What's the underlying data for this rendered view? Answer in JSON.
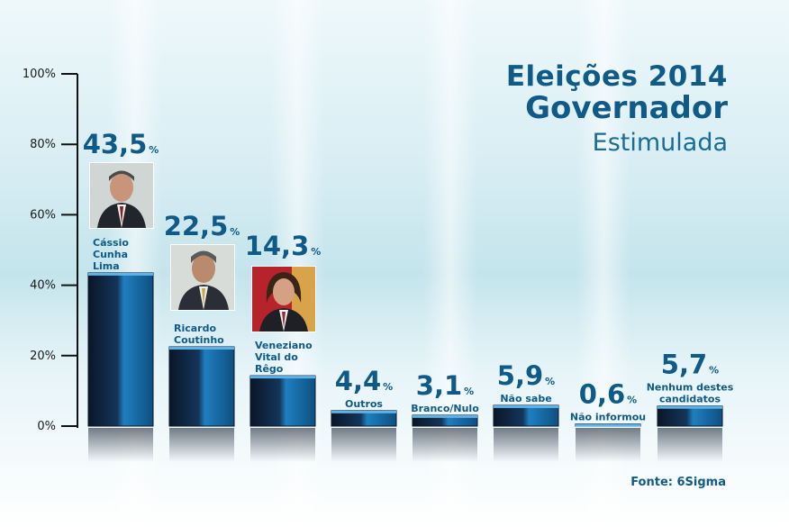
{
  "title": {
    "line1": "Eleições 2014",
    "line2": "Governador",
    "line3": "Estimulada"
  },
  "source": "Fonte: 6Sigma",
  "colors": {
    "accent": "#0f5a86",
    "bar_dark": "#0a1a30",
    "bar_light": "#1f7fc0"
  },
  "chart_data": {
    "type": "bar",
    "title": "Eleições 2014 Governador Estimulada",
    "xlabel": "",
    "ylabel": "",
    "ylim": [
      0,
      100
    ],
    "yticks": [
      "0%",
      "20%",
      "40%",
      "60%",
      "80%",
      "100%"
    ],
    "categories": [
      "Cássio Cunha Lima",
      "Ricardo Coutinho",
      "Veneziano Vital do Rêgo",
      "Outros",
      "Branco/Nulo",
      "Não sabe",
      "Não informou",
      "Nenhum destes candidatos"
    ],
    "label_lines": [
      [
        "Cássio",
        "Cunha",
        "Lima"
      ],
      [
        "Ricardo",
        "Coutinho"
      ],
      [
        "Veneziano",
        "Vital do",
        "Rêgo"
      ],
      [
        "Outros"
      ],
      [
        "Branco/Nulo"
      ],
      [
        "Não sabe"
      ],
      [
        "Não informou"
      ],
      [
        "Nenhum destes",
        "candidatos"
      ]
    ],
    "values": [
      43.5,
      22.5,
      14.3,
      4.4,
      3.1,
      5.9,
      0.6,
      5.7
    ],
    "value_labels": [
      "43,5",
      "22,5",
      "14,3",
      "4,4",
      "3,1",
      "5,9",
      "0,6",
      "5,7"
    ],
    "unit": "%"
  }
}
